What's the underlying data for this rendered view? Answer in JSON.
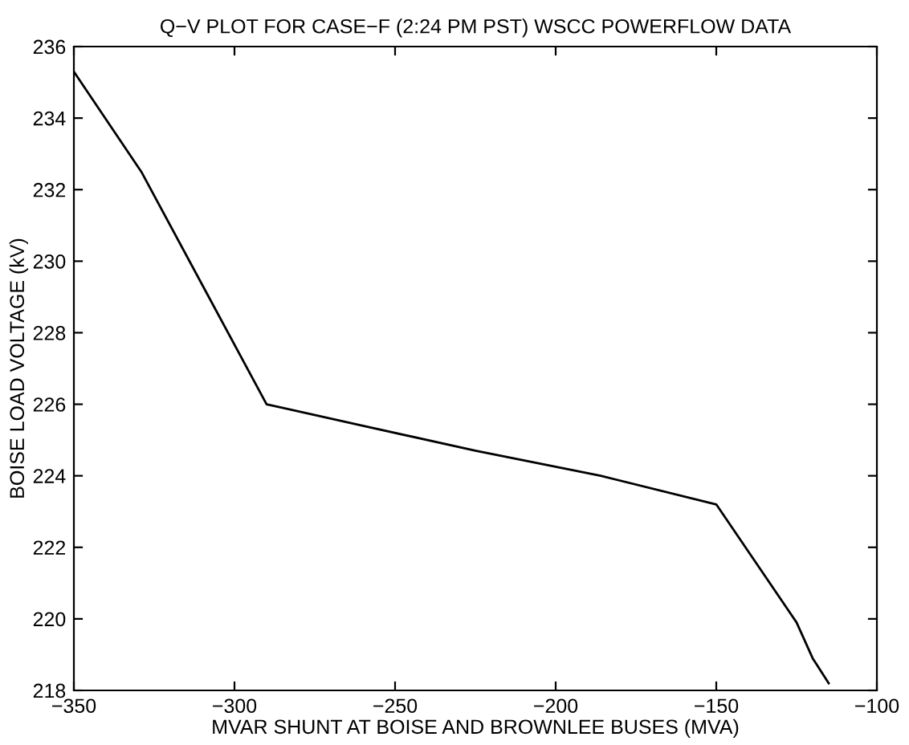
{
  "chart_data": {
    "type": "line",
    "title": "Q−V PLOT FOR CASE−F (2:24 PM PST) WSCC POWERFLOW DATA",
    "xlabel": "MVAR SHUNT AT BOISE AND BROWNLEE BUSES (MVA)",
    "ylabel": "BOISE LOAD VOLTAGE (kV)",
    "x": [
      -350,
      -329,
      -290,
      -260,
      -225,
      -186,
      -150,
      -125,
      -120,
      -115
    ],
    "series": [
      {
        "color": "#000000",
        "values": [
          235.3,
          232.5,
          226.0,
          225.4,
          224.7,
          224.0,
          223.2,
          219.9,
          218.9,
          218.2
        ]
      }
    ],
    "xlim": [
      -350,
      -100
    ],
    "xticks": [
      {
        "value": -350,
        "label": "−350"
      },
      {
        "value": -300,
        "label": "−300"
      },
      {
        "value": -250,
        "label": "−250"
      },
      {
        "value": -200,
        "label": "−200"
      },
      {
        "value": -150,
        "label": "−150"
      },
      {
        "value": -100,
        "label": "−100"
      }
    ],
    "ylim": [
      218,
      236
    ],
    "yticks": [
      218,
      220,
      222,
      224,
      226,
      228,
      230,
      232,
      234,
      236
    ],
    "grid": false,
    "legend": false
  }
}
